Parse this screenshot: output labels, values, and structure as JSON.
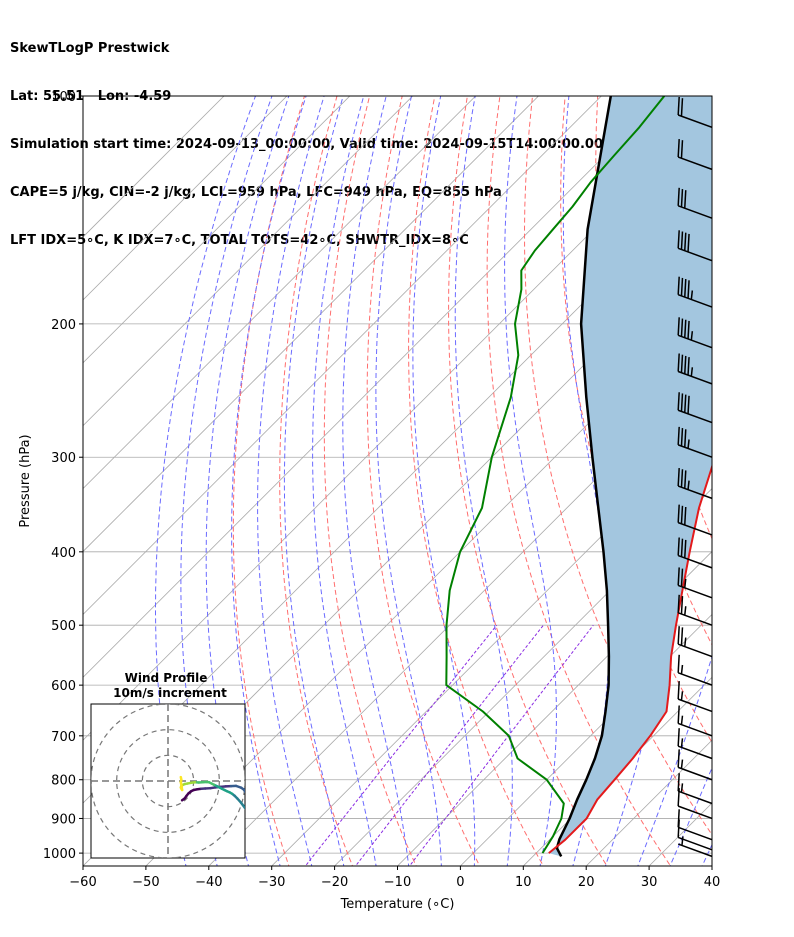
{
  "header": {
    "line1": "SkewTLogP Prestwick",
    "line2": "Lat: 55.51   Lon: -4.59",
    "line3": "Simulation start time: 2024-09-13_00:00:00, Valid time: 2024-09-15T14:00:00.00",
    "line4": "CAPE=5 j/kg, CIN=-2 j/kg, LCL=959 hPa, LFC=949 hPa, EQ=855 hPa",
    "line5": "LFT IDX=5∘C, K IDX=7∘C, TOTAL TOTS=42∘C, SHWTR_IDX=8∘C"
  },
  "colors": {
    "temperature": "#e31a1c",
    "dewpoint": "#008000",
    "parcel": "#000000",
    "cape_fill": "#a3c6df",
    "dry_adiabat": "#ff6e6e",
    "moist_adiabat": "#6b6bff",
    "mixing_ratio": "#8a2be2",
    "isotherm": "#aaaaaa"
  },
  "chart_data": {
    "type": "line",
    "xlabel": "Temperature (∘C)",
    "ylabel": "Pressure (hPa)",
    "xlim": [
      -60,
      40
    ],
    "ylim": [
      1040,
      100
    ],
    "y_scale": "log",
    "x_ticks": [
      "−60",
      "−50",
      "−40",
      "−30",
      "−20",
      "−10",
      "0",
      "10",
      "20",
      "30",
      "40"
    ],
    "y_ticks": [
      "100",
      "200",
      "300",
      "400",
      "500",
      "600",
      "700",
      "800",
      "900",
      "1000"
    ],
    "series": [
      {
        "key": "temperature",
        "points": [
          [
            1000,
            12
          ],
          [
            960,
            12.5
          ],
          [
            900,
            12.5
          ],
          [
            850,
            11.2
          ],
          [
            800,
            10.8
          ],
          [
            750,
            10.3
          ],
          [
            700,
            9.5
          ],
          [
            650,
            8.2
          ],
          [
            600,
            4.5
          ],
          [
            550,
            0.2
          ],
          [
            500,
            -4.0
          ],
          [
            450,
            -8.5
          ],
          [
            400,
            -13.5
          ],
          [
            350,
            -19.0
          ],
          [
            300,
            -24.5
          ],
          [
            280,
            -27.0
          ],
          [
            250,
            -31.5
          ],
          [
            230,
            -35.0
          ],
          [
            220,
            -37.0
          ],
          [
            200,
            -41.0
          ],
          [
            180,
            -45.0
          ],
          [
            165,
            -48.5
          ],
          [
            150,
            -51.0
          ],
          [
            140,
            -52.0
          ],
          [
            130,
            -52.5
          ],
          [
            120,
            -53.0
          ],
          [
            110,
            -54.0
          ],
          [
            100,
            -54.5
          ]
        ]
      },
      {
        "key": "dewpoint",
        "points": [
          [
            1000,
            11
          ],
          [
            950,
            10
          ],
          [
            900,
            8.5
          ],
          [
            860,
            6.5
          ],
          [
            800,
            0
          ],
          [
            750,
            -8.0
          ],
          [
            700,
            -13.0
          ],
          [
            650,
            -21.0
          ],
          [
            600,
            -31.0
          ],
          [
            550,
            -35.5
          ],
          [
            500,
            -40.5
          ],
          [
            450,
            -45.5
          ],
          [
            400,
            -50.0
          ],
          [
            350,
            -53.5
          ],
          [
            300,
            -60.0
          ],
          [
            250,
            -66.5
          ],
          [
            220,
            -72.0
          ],
          [
            200,
            -77.5
          ],
          [
            180,
            -82.0
          ],
          [
            170,
            -85.0
          ],
          [
            160,
            -86.0
          ],
          [
            150,
            -86.5
          ],
          [
            140,
            -87.0
          ],
          [
            130,
            -88.0
          ],
          [
            120,
            -88.5
          ],
          [
            110,
            -89.0
          ],
          [
            100,
            -90.0
          ]
        ]
      },
      {
        "key": "parcel",
        "points": [
          [
            1010,
            14.5
          ],
          [
            985,
            12.5
          ],
          [
            959,
            11.5
          ],
          [
            900,
            9.8
          ],
          [
            850,
            8.0
          ],
          [
            800,
            6.3
          ],
          [
            750,
            4.3
          ],
          [
            700,
            1.8
          ],
          [
            650,
            -1.5
          ],
          [
            600,
            -5.2
          ],
          [
            550,
            -9.7
          ],
          [
            500,
            -14.8
          ],
          [
            450,
            -20.5
          ],
          [
            400,
            -27.2
          ],
          [
            350,
            -35.0
          ],
          [
            300,
            -44.0
          ],
          [
            250,
            -54.5
          ],
          [
            200,
            -67.0
          ],
          [
            150,
            -81.0
          ],
          [
            100,
            -98.5
          ]
        ]
      }
    ],
    "wind_barbs": [
      {
        "p": 1010,
        "speed_kt": 5
      },
      {
        "p": 990,
        "speed_kt": 10
      },
      {
        "p": 960,
        "speed_kt": 10
      },
      {
        "p": 900,
        "speed_kt": 10
      },
      {
        "p": 860,
        "speed_kt": 15
      },
      {
        "p": 800,
        "speed_kt": 15
      },
      {
        "p": 750,
        "speed_kt": 15
      },
      {
        "p": 700,
        "speed_kt": 15
      },
      {
        "p": 650,
        "speed_kt": 15
      },
      {
        "p": 600,
        "speed_kt": 15
      },
      {
        "p": 550,
        "speed_kt": 25
      },
      {
        "p": 500,
        "speed_kt": 25
      },
      {
        "p": 460,
        "speed_kt": 25
      },
      {
        "p": 420,
        "speed_kt": 30
      },
      {
        "p": 380,
        "speed_kt": 30
      },
      {
        "p": 340,
        "speed_kt": 35
      },
      {
        "p": 300,
        "speed_kt": 35
      },
      {
        "p": 270,
        "speed_kt": 40
      },
      {
        "p": 240,
        "speed_kt": 45
      },
      {
        "p": 215,
        "speed_kt": 45
      },
      {
        "p": 190,
        "speed_kt": 45
      },
      {
        "p": 165,
        "speed_kt": 40
      },
      {
        "p": 145,
        "speed_kt": 30
      },
      {
        "p": 125,
        "speed_kt": 20
      },
      {
        "p": 110,
        "speed_kt": 20
      }
    ],
    "hodograph": {
      "title": "Wind Profile",
      "subtitle": "10m/s increment",
      "rings_ms": [
        10,
        20,
        30
      ],
      "range_ms": 30,
      "points": [
        [
          5.5,
          -7.5
        ],
        [
          6.5,
          -6.8
        ],
        [
          7.2,
          -5.8
        ],
        [
          8.0,
          -4.8
        ],
        [
          9.0,
          -4.0
        ],
        [
          10.0,
          -3.5
        ],
        [
          11.5,
          -3.2
        ],
        [
          13.0,
          -3.0
        ],
        [
          14.5,
          -2.9
        ],
        [
          16.5,
          -2.8
        ],
        [
          18.5,
          -2.5
        ],
        [
          20.5,
          -2.3
        ],
        [
          22.5,
          -2.1
        ],
        [
          24.5,
          -2.0
        ],
        [
          26.5,
          -1.9
        ],
        [
          28.5,
          -2.6
        ],
        [
          29.5,
          -3.3
        ],
        [
          30.5,
          -4.8
        ],
        [
          31.0,
          -5.8
        ],
        [
          31.5,
          -7.5
        ],
        [
          31.2,
          -9.5
        ],
        [
          30.0,
          -10.5
        ],
        [
          28.5,
          -8.5
        ],
        [
          27.0,
          -6.8
        ],
        [
          26.0,
          -5.8
        ],
        [
          25.0,
          -5.0
        ],
        [
          24.0,
          -4.4
        ],
        [
          23.0,
          -4.0
        ],
        [
          22.0,
          -3.5
        ],
        [
          21.0,
          -3.0
        ],
        [
          20.0,
          -2.5
        ],
        [
          19.0,
          -2.0
        ],
        [
          18.0,
          -1.5
        ],
        [
          17.0,
          -1.0
        ],
        [
          16.0,
          -0.5
        ],
        [
          15.0,
          -0.4
        ],
        [
          13.5,
          -0.5
        ],
        [
          12.0,
          -0.6
        ],
        [
          10.5,
          -0.5
        ],
        [
          9.0,
          -0.7
        ],
        [
          7.5,
          -1.0
        ],
        [
          6.5,
          -1.2
        ],
        [
          5.8,
          -1.5
        ],
        [
          5.2,
          -2.0
        ],
        [
          5.0,
          -2.5
        ],
        [
          5.2,
          -3.0
        ],
        [
          5.5,
          -3.5
        ],
        [
          5.3,
          -2.0
        ],
        [
          5.0,
          -0.5
        ],
        [
          5.2,
          0.5
        ],
        [
          5.0,
          1.5
        ]
      ]
    }
  }
}
